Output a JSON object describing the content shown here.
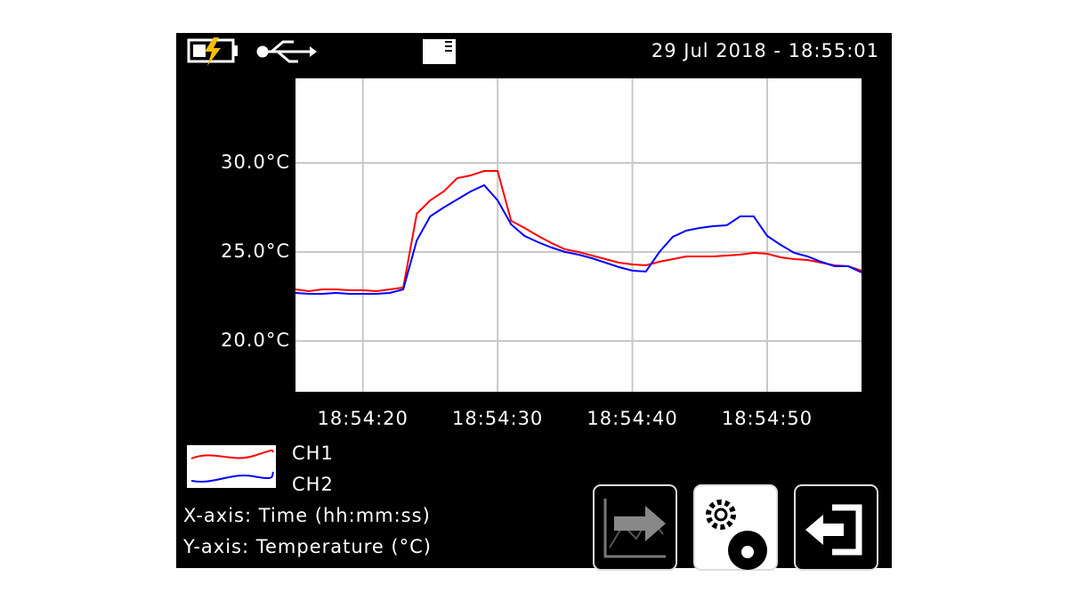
{
  "status_bar": {
    "datetime": "29 Jul 2018 - 18:55:01"
  },
  "chart_data": {
    "type": "line",
    "x": [
      "18:54:15",
      "18:54:16",
      "18:54:17",
      "18:54:18",
      "18:54:19",
      "18:54:20",
      "18:54:21",
      "18:54:22",
      "18:54:23",
      "18:54:24",
      "18:54:25",
      "18:54:26",
      "18:54:27",
      "18:54:28",
      "18:54:29",
      "18:54:30",
      "18:54:31",
      "18:54:32",
      "18:54:33",
      "18:54:34",
      "18:54:35",
      "18:54:36",
      "18:54:37",
      "18:54:38",
      "18:54:39",
      "18:54:40",
      "18:54:41",
      "18:54:42",
      "18:54:43",
      "18:54:44",
      "18:54:45",
      "18:54:46",
      "18:54:47",
      "18:54:48",
      "18:54:49",
      "18:54:50",
      "18:54:51",
      "18:54:52",
      "18:54:53",
      "18:54:54",
      "18:54:55",
      "18:54:56",
      "18:54:57"
    ],
    "series": [
      {
        "name": "CH1",
        "color": "#ff0000",
        "values": [
          22.9,
          22.8,
          22.9,
          22.9,
          22.85,
          22.85,
          22.8,
          22.9,
          23.0,
          27.15,
          27.9,
          28.4,
          29.15,
          29.3,
          29.55,
          29.55,
          26.75,
          26.35,
          25.9,
          25.5,
          25.15,
          25.0,
          24.8,
          24.6,
          24.4,
          24.3,
          24.25,
          24.45,
          24.6,
          24.75,
          24.75,
          24.75,
          24.8,
          24.85,
          24.95,
          24.9,
          24.7,
          24.6,
          24.55,
          24.4,
          24.25,
          24.2,
          23.95
        ]
      },
      {
        "name": "CH2",
        "color": "#0000ff",
        "values": [
          22.7,
          22.65,
          22.65,
          22.7,
          22.65,
          22.65,
          22.65,
          22.7,
          22.9,
          25.65,
          27.0,
          27.5,
          27.95,
          28.4,
          28.75,
          27.9,
          26.55,
          25.9,
          25.55,
          25.25,
          25.0,
          24.85,
          24.65,
          24.4,
          24.15,
          23.95,
          23.9,
          25.0,
          25.85,
          26.2,
          26.35,
          26.45,
          26.5,
          27.0,
          27.0,
          25.9,
          25.4,
          24.95,
          24.75,
          24.45,
          24.2,
          24.2,
          23.85
        ]
      }
    ],
    "xlim": [
      "18:54:15",
      "18:54:57"
    ],
    "xticks": [
      "18:54:20",
      "18:54:30",
      "18:54:40",
      "18:54:50"
    ],
    "ylim": [
      17.15,
      34.75
    ],
    "yticks": [
      {
        "value": 20,
        "label": "20.0°C"
      },
      {
        "value": 25,
        "label": "25.0°C"
      },
      {
        "value": 30,
        "label": "30.0°C"
      }
    ],
    "grid": true
  },
  "axis_info": {
    "x_axis": "X-axis: Time (hh:mm:ss)",
    "y_axis": "Y-axis: Temperature (°C)"
  }
}
